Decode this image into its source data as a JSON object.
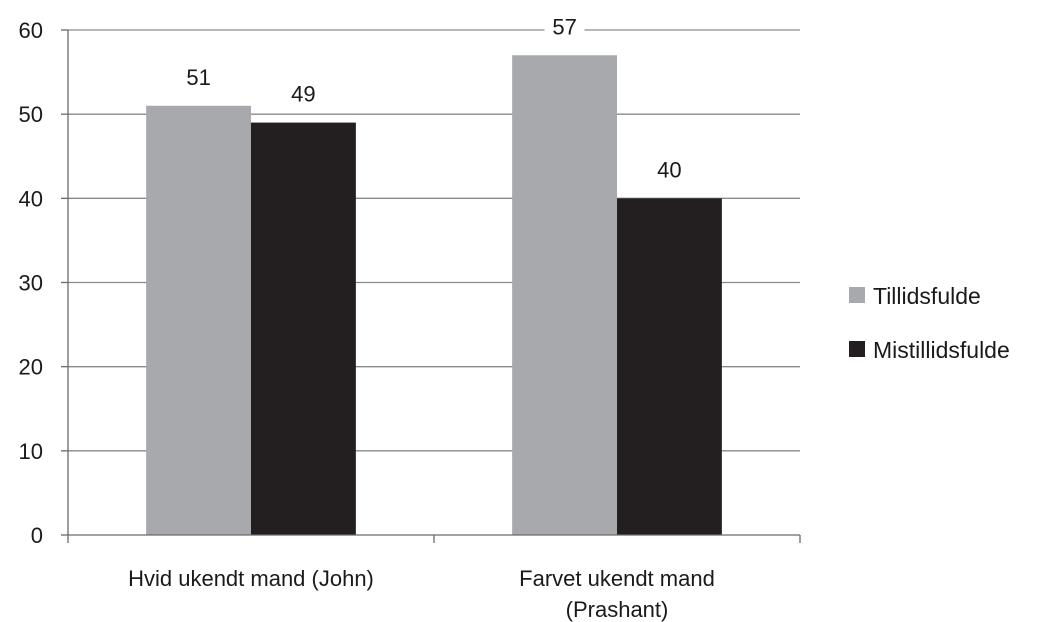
{
  "chart_data": {
    "type": "bar",
    "categories": [
      [
        "Hvid ukendt mand (John)"
      ],
      [
        "Farvet ukendt mand",
        "(Prashant)"
      ]
    ],
    "series": [
      {
        "name": "Tillidsfulde",
        "values": [
          51,
          57
        ],
        "color": "#a7a9ac"
      },
      {
        "name": "Mistillidsfulde",
        "values": [
          49,
          40
        ],
        "color": "#231f20"
      }
    ],
    "ylim": [
      0,
      60
    ],
    "yticks": [
      0,
      10,
      20,
      30,
      40,
      50,
      60
    ],
    "grid": true,
    "legend": "right",
    "data_labels": true
  }
}
